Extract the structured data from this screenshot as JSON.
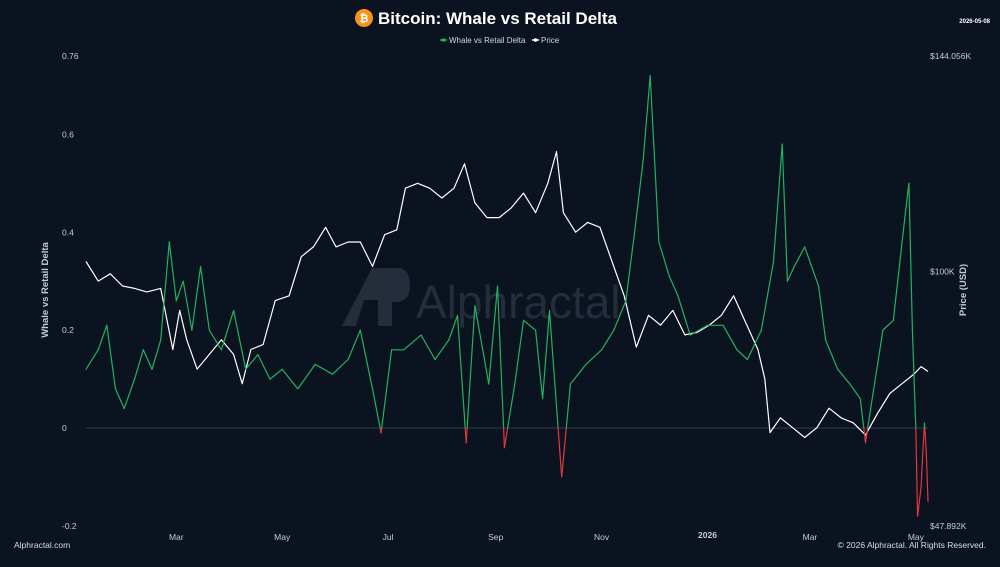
{
  "header": {
    "title": "Bitcoin: Whale vs Retail Delta",
    "date": "2026-05-08",
    "btc_icon_symbol": "₿"
  },
  "watermark": "Alphractal",
  "footer": {
    "source": "Alphractal.com",
    "copyright": "© 2026 Alphractal. All Rights Reserved."
  },
  "colors": {
    "background": "#0b1220",
    "delta_positive": "#22b35e",
    "delta_negative": "#e0393e",
    "price": "#ffffff",
    "btc_orange": "#f7931a"
  },
  "chart_data": {
    "type": "line",
    "title": "Bitcoin: Whale vs Retail Delta",
    "legend": [
      "Whale vs Retail Delta",
      "Price"
    ],
    "legend_position": "top-center",
    "grid": false,
    "x_tick_labels": [
      "Mar",
      "May",
      "Jul",
      "Sep",
      "Nov",
      "2026",
      "Mar",
      "May"
    ],
    "x_range": [
      "2025-01-08",
      "2026-05-08"
    ],
    "y_left": {
      "label": "Whale vs Retail Delta",
      "range": [
        -0.2,
        0.76
      ],
      "ticks": [
        "0.76",
        "0.6",
        "0.4",
        "0.2",
        "0",
        "-0.2"
      ]
    },
    "y_right": {
      "label": "Price (USD)",
      "range": [
        47892,
        144056
      ],
      "ticks": [
        "$144.056K",
        "$100K",
        "$47.892K"
      ]
    },
    "series": [
      {
        "name": "Whale vs Retail Delta",
        "axis": "left",
        "points": [
          [
            "2025-01-08",
            0.12
          ],
          [
            "2025-01-15",
            0.16
          ],
          [
            "2025-01-20",
            0.21
          ],
          [
            "2025-01-25",
            0.08
          ],
          [
            "2025-01-30",
            0.04
          ],
          [
            "2025-02-05",
            0.1
          ],
          [
            "2025-02-10",
            0.16
          ],
          [
            "2025-02-15",
            0.12
          ],
          [
            "2025-02-20",
            0.18
          ],
          [
            "2025-02-25",
            0.38
          ],
          [
            "2025-03-01",
            0.26
          ],
          [
            "2025-03-05",
            0.3
          ],
          [
            "2025-03-10",
            0.2
          ],
          [
            "2025-03-15",
            0.33
          ],
          [
            "2025-03-20",
            0.2
          ],
          [
            "2025-03-27",
            0.16
          ],
          [
            "2025-04-03",
            0.24
          ],
          [
            "2025-04-10",
            0.12
          ],
          [
            "2025-04-17",
            0.15
          ],
          [
            "2025-04-24",
            0.1
          ],
          [
            "2025-05-01",
            0.12
          ],
          [
            "2025-05-10",
            0.08
          ],
          [
            "2025-05-20",
            0.13
          ],
          [
            "2025-05-30",
            0.11
          ],
          [
            "2025-06-08",
            0.14
          ],
          [
            "2025-06-15",
            0.2
          ],
          [
            "2025-06-22",
            0.08
          ],
          [
            "2025-06-27",
            -0.01
          ],
          [
            "2025-07-03",
            0.16
          ],
          [
            "2025-07-10",
            0.16
          ],
          [
            "2025-07-20",
            0.19
          ],
          [
            "2025-07-28",
            0.14
          ],
          [
            "2025-08-05",
            0.18
          ],
          [
            "2025-08-10",
            0.23
          ],
          [
            "2025-08-15",
            -0.03
          ],
          [
            "2025-08-20",
            0.25
          ],
          [
            "2025-08-28",
            0.09
          ],
          [
            "2025-09-02",
            0.29
          ],
          [
            "2025-09-06",
            -0.04
          ],
          [
            "2025-09-12",
            0.09
          ],
          [
            "2025-09-17",
            0.22
          ],
          [
            "2025-09-24",
            0.2
          ],
          [
            "2025-09-28",
            0.06
          ],
          [
            "2025-10-02",
            0.24
          ],
          [
            "2025-10-09",
            -0.1
          ],
          [
            "2025-10-14",
            0.09
          ],
          [
            "2025-10-23",
            0.13
          ],
          [
            "2025-11-01",
            0.16
          ],
          [
            "2025-11-08",
            0.2
          ],
          [
            "2025-11-15",
            0.26
          ],
          [
            "2025-11-20",
            0.4
          ],
          [
            "2025-11-25",
            0.55
          ],
          [
            "2025-11-29",
            0.72
          ],
          [
            "2025-12-04",
            0.38
          ],
          [
            "2025-12-10",
            0.31
          ],
          [
            "2025-12-15",
            0.27
          ],
          [
            "2025-12-22",
            0.19
          ],
          [
            "2026-01-01",
            0.21
          ],
          [
            "2026-01-10",
            0.21
          ],
          [
            "2026-01-18",
            0.16
          ],
          [
            "2026-01-24",
            0.14
          ],
          [
            "2026-02-01",
            0.2
          ],
          [
            "2026-02-08",
            0.34
          ],
          [
            "2026-02-13",
            0.58
          ],
          [
            "2026-02-16",
            0.3
          ],
          [
            "2026-02-20",
            0.33
          ],
          [
            "2026-02-26",
            0.37
          ],
          [
            "2026-03-06",
            0.29
          ],
          [
            "2026-03-10",
            0.18
          ],
          [
            "2026-03-17",
            0.12
          ],
          [
            "2026-03-24",
            0.09
          ],
          [
            "2026-03-30",
            0.06
          ],
          [
            "2026-04-02",
            -0.03
          ],
          [
            "2026-04-05",
            0.04
          ],
          [
            "2026-04-12",
            0.2
          ],
          [
            "2026-04-18",
            0.22
          ],
          [
            "2026-04-25",
            0.44
          ],
          [
            "2026-04-27",
            0.5
          ],
          [
            "2026-04-29",
            0.2
          ],
          [
            "2026-05-01",
            0.0
          ],
          [
            "2026-05-02",
            -0.18
          ],
          [
            "2026-05-04",
            -0.12
          ],
          [
            "2026-05-05",
            -0.05
          ],
          [
            "2026-05-06",
            0.01
          ],
          [
            "2026-05-07",
            -0.05
          ],
          [
            "2026-05-08",
            -0.15
          ]
        ]
      },
      {
        "name": "Price",
        "axis": "right",
        "points": [
          [
            "2025-01-08",
            102000
          ],
          [
            "2025-01-15",
            98000
          ],
          [
            "2025-01-22",
            99500
          ],
          [
            "2025-01-29",
            97000
          ],
          [
            "2025-02-05",
            96500
          ],
          [
            "2025-02-12",
            95800
          ],
          [
            "2025-02-20",
            96500
          ],
          [
            "2025-02-27",
            84000
          ],
          [
            "2025-03-03",
            92000
          ],
          [
            "2025-03-07",
            86000
          ],
          [
            "2025-03-13",
            80000
          ],
          [
            "2025-03-20",
            83000
          ],
          [
            "2025-03-27",
            86000
          ],
          [
            "2025-04-03",
            83000
          ],
          [
            "2025-04-08",
            77000
          ],
          [
            "2025-04-13",
            84000
          ],
          [
            "2025-04-20",
            85000
          ],
          [
            "2025-04-27",
            94000
          ],
          [
            "2025-05-05",
            95000
          ],
          [
            "2025-05-12",
            103000
          ],
          [
            "2025-05-19",
            105000
          ],
          [
            "2025-05-26",
            109000
          ],
          [
            "2025-06-01",
            105000
          ],
          [
            "2025-06-08",
            106000
          ],
          [
            "2025-06-15",
            106000
          ],
          [
            "2025-06-22",
            101000
          ],
          [
            "2025-06-29",
            107500
          ],
          [
            "2025-07-06",
            108500
          ],
          [
            "2025-07-11",
            117000
          ],
          [
            "2025-07-18",
            118000
          ],
          [
            "2025-07-25",
            117000
          ],
          [
            "2025-08-01",
            115000
          ],
          [
            "2025-08-08",
            117000
          ],
          [
            "2025-08-14",
            122000
          ],
          [
            "2025-08-20",
            114000
          ],
          [
            "2025-08-27",
            111000
          ],
          [
            "2025-09-03",
            111000
          ],
          [
            "2025-09-10",
            113000
          ],
          [
            "2025-09-17",
            116000
          ],
          [
            "2025-09-24",
            112000
          ],
          [
            "2025-10-01",
            118000
          ],
          [
            "2025-10-06",
            124500
          ],
          [
            "2025-10-10",
            112000
          ],
          [
            "2025-10-17",
            108000
          ],
          [
            "2025-10-24",
            110000
          ],
          [
            "2025-10-31",
            109000
          ],
          [
            "2025-11-07",
            102000
          ],
          [
            "2025-11-14",
            95000
          ],
          [
            "2025-11-21",
            84500
          ],
          [
            "2025-11-28",
            91000
          ],
          [
            "2025-12-05",
            89000
          ],
          [
            "2025-12-12",
            92000
          ],
          [
            "2025-12-19",
            87000
          ],
          [
            "2025-12-26",
            87500
          ],
          [
            "2026-01-02",
            89000
          ],
          [
            "2026-01-09",
            91000
          ],
          [
            "2026-01-16",
            95000
          ],
          [
            "2026-01-23",
            89500
          ],
          [
            "2026-01-30",
            84000
          ],
          [
            "2026-02-03",
            78000
          ],
          [
            "2026-02-06",
            67000
          ],
          [
            "2026-02-12",
            70000
          ],
          [
            "2026-02-19",
            68000
          ],
          [
            "2026-02-26",
            66000
          ],
          [
            "2026-03-05",
            68000
          ],
          [
            "2026-03-12",
            72000
          ],
          [
            "2026-03-19",
            70000
          ],
          [
            "2026-03-26",
            69000
          ],
          [
            "2026-04-02",
            66500
          ],
          [
            "2026-04-09",
            71000
          ],
          [
            "2026-04-16",
            75000
          ],
          [
            "2026-04-23",
            77000
          ],
          [
            "2026-04-30",
            79000
          ],
          [
            "2026-05-04",
            80500
          ],
          [
            "2026-05-08",
            79500
          ]
        ]
      }
    ]
  }
}
